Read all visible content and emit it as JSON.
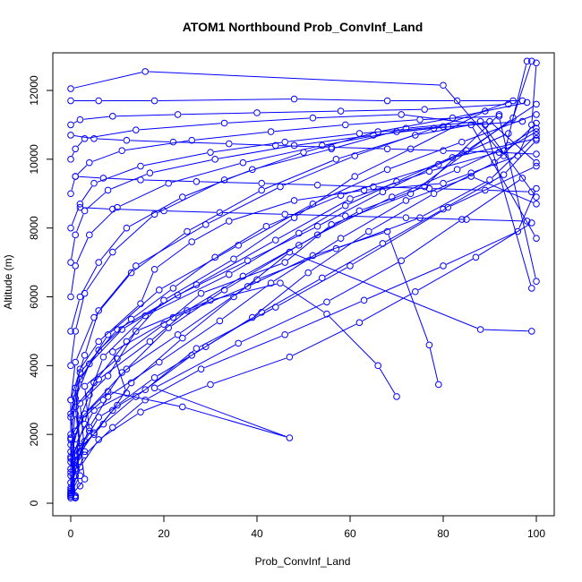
{
  "chart_data": {
    "type": "line",
    "title": "ATOM1 Northbound Prob_ConvInf_Land",
    "xlabel": "Prob_ConvInf_Land",
    "ylabel": "Altitude (m)",
    "xlim": [
      0,
      100
    ],
    "ylim": [
      0,
      12500
    ],
    "x_ticks": [
      0,
      20,
      40,
      60,
      80,
      100
    ],
    "y_ticks": [
      0,
      2000,
      4000,
      6000,
      8000,
      10000,
      12000
    ],
    "grid": false,
    "legend": "none",
    "series_color": "#0000ff",
    "marker": "open-circle",
    "series": [
      {
        "x": [
          0,
          1,
          0,
          2,
          6,
          15,
          18,
          26,
          34,
          48,
          63,
          80,
          86,
          96,
          99,
          100
        ],
        "y": [
          200,
          1200,
          2600,
          3900,
          4700,
          5800,
          6800,
          7600,
          8200,
          8800,
          9100,
          9300,
          9600,
          10100,
          11000,
          12800
        ]
      },
      {
        "x": [
          0,
          2,
          1,
          5,
          12,
          9,
          22,
          38,
          52,
          68,
          77,
          79
        ],
        "y": [
          300,
          800,
          1700,
          2700,
          3200,
          4400,
          5400,
          6300,
          7200,
          7900,
          4600,
          3450
        ]
      },
      {
        "x": [
          1,
          0,
          3,
          2,
          8,
          14,
          30,
          45,
          55,
          66,
          70
        ],
        "y": [
          150,
          900,
          1500,
          2900,
          3700,
          5000,
          5900,
          6400,
          5500,
          4000,
          3100
        ]
      },
      {
        "x": [
          0,
          1,
          4,
          3,
          10,
          20,
          28,
          46,
          56,
          73,
          95,
          99
        ],
        "y": [
          400,
          1400,
          2100,
          3400,
          4200,
          5200,
          6100,
          7000,
          8100,
          9000,
          11200,
          12850
        ]
      },
      {
        "x": [
          0,
          0,
          2,
          7,
          11,
          23,
          40,
          57,
          75,
          90,
          100
        ],
        "y": [
          200,
          1900,
          2400,
          3000,
          3800,
          4900,
          6500,
          7400,
          8300,
          9400,
          10700
        ]
      },
      {
        "x": [
          0,
          1,
          3,
          6,
          16,
          27,
          44,
          60,
          81,
          100
        ],
        "y": [
          600,
          1000,
          1800,
          2500,
          3300,
          4500,
          5700,
          6900,
          8600,
          9800
        ]
      },
      {
        "x": [
          2,
          0,
          5,
          9,
          13,
          24,
          35,
          47,
          88,
          99
        ],
        "y": [
          500,
          1300,
          2000,
          2700,
          3500,
          4800,
          6000,
          7300,
          5050,
          5000
        ]
      },
      {
        "x": [
          0,
          1,
          4,
          8,
          19,
          32,
          43,
          58,
          72,
          86,
          100
        ],
        "y": [
          250,
          1100,
          2200,
          3100,
          4100,
          5300,
          6400,
          7700,
          8800,
          9500,
          8700
        ]
      },
      {
        "x": [
          0,
          2,
          1,
          6,
          17,
          25,
          37,
          53,
          69,
          83,
          94,
          100
        ],
        "y": [
          350,
          1500,
          2800,
          3600,
          4700,
          5600,
          6600,
          7800,
          8900,
          9700,
          10400,
          10900
        ]
      },
      {
        "x": [
          1,
          0,
          3,
          12,
          21,
          33,
          49,
          62,
          76,
          92
        ],
        "y": [
          180,
          1700,
          2600,
          3900,
          5100,
          6200,
          7500,
          8500,
          9200,
          11300
        ]
      },
      {
        "x": [
          0,
          3,
          2,
          7,
          14,
          26,
          39,
          51,
          64,
          78,
          91,
          100
        ],
        "y": [
          200,
          700,
          1600,
          2300,
          3100,
          4300,
          5400,
          6700,
          7900,
          9000,
          9900,
          11050
        ]
      },
      {
        "x": [
          0,
          1,
          5,
          10,
          18,
          29,
          41,
          54,
          67,
          80,
          93,
          100
        ],
        "y": [
          450,
          1250,
          2050,
          2850,
          3650,
          4550,
          5550,
          6550,
          7550,
          8550,
          9550,
          10550
        ]
      },
      {
        "x": [
          0,
          2,
          6,
          15,
          30,
          47,
          62,
          74,
          87,
          99
        ],
        "y": [
          300,
          1050,
          1850,
          2650,
          3450,
          4250,
          5250,
          6150,
          7150,
          8150
        ]
      },
      {
        "x": [
          0,
          1,
          3,
          9,
          16,
          28,
          46,
          63,
          80,
          96,
          100
        ],
        "y": [
          150,
          800,
          1400,
          2200,
          3000,
          3900,
          4900,
          5900,
          6900,
          7900,
          9150
        ]
      },
      {
        "x": [
          1,
          0,
          2,
          8,
          24,
          47,
          18,
          36,
          55,
          71,
          84,
          97
        ],
        "y": [
          220,
          1350,
          2450,
          3250,
          2800,
          1900,
          3350,
          4650,
          5850,
          7050,
          8250,
          9450
        ]
      },
      {
        "x": [
          0,
          0,
          1,
          4,
          11,
          23,
          38,
          53,
          67,
          82,
          100
        ],
        "y": [
          260,
          1850,
          3050,
          4050,
          5050,
          6050,
          7050,
          8050,
          9050,
          10050,
          10600
        ]
      },
      {
        "x": [
          0,
          2,
          1,
          6,
          13,
          22,
          31,
          42,
          58,
          79,
          94
        ],
        "y": [
          800,
          1650,
          3350,
          4450,
          5350,
          6250,
          7150,
          8050,
          8950,
          9850,
          10750
        ]
      },
      {
        "x": [
          0,
          1,
          4,
          7,
          16,
          34,
          49,
          59,
          70,
          85,
          100
        ],
        "y": [
          1000,
          2100,
          3150,
          4250,
          5450,
          6650,
          7850,
          8650,
          9350,
          10250,
          11600
        ]
      },
      {
        "x": [
          0,
          3,
          5,
          12,
          20,
          35,
          48,
          61,
          73,
          89
        ],
        "y": [
          1200,
          2300,
          3500,
          4700,
          5900,
          7100,
          8300,
          9500,
          10300,
          11400
        ]
      },
      {
        "x": [
          0,
          1,
          2,
          10,
          27,
          44,
          60,
          77,
          93,
          100
        ],
        "y": [
          1500,
          2600,
          3800,
          5050,
          6350,
          7650,
          8850,
          9650,
          10250,
          10800
        ]
      },
      {
        "x": [
          0,
          0,
          3,
          6,
          14,
          29,
          45,
          61,
          78,
          95
        ],
        "y": [
          2000,
          3000,
          4300,
          5600,
          6900,
          8100,
          9200,
          10100,
          10900,
          11700
        ]
      },
      {
        "x": [
          0,
          2,
          8,
          19,
          36,
          52,
          68,
          84,
          100
        ],
        "y": [
          2500,
          3600,
          4900,
          6200,
          7500,
          8700,
          9700,
          10500,
          11300
        ]
      },
      {
        "x": [
          0,
          1,
          5,
          13,
          25,
          41,
          57,
          74,
          90,
          100
        ],
        "y": [
          3000,
          4100,
          5400,
          6700,
          7900,
          9100,
          10000,
          10700,
          11100,
          9900
        ]
      },
      {
        "x": [
          0,
          1,
          3,
          9,
          18,
          33,
          50,
          66,
          82,
          98
        ],
        "y": [
          4000,
          5000,
          6100,
          7300,
          8400,
          9400,
          10200,
          10800,
          11200,
          11650
        ]
      },
      {
        "x": [
          0,
          2,
          6,
          12,
          24,
          39,
          56,
          72,
          88,
          100
        ],
        "y": [
          5000,
          6000,
          7000,
          8000,
          8900,
          9700,
          10300,
          10900,
          11100,
          8900
        ]
      },
      {
        "x": [
          0,
          1,
          4,
          10,
          21,
          37,
          54,
          70,
          86,
          100
        ],
        "y": [
          6000,
          6900,
          7800,
          8600,
          9300,
          9900,
          10400,
          10800,
          11000,
          7700
        ]
      },
      {
        "x": [
          0,
          1,
          3,
          8,
          17,
          31,
          48,
          65,
          81,
          97
        ],
        "y": [
          7000,
          7800,
          8500,
          9100,
          9600,
          10000,
          10400,
          10700,
          10950,
          11100
        ]
      },
      {
        "x": [
          0,
          2,
          5,
          15,
          30,
          46,
          62,
          80
        ],
        "y": [
          8000,
          8700,
          9300,
          9800,
          10200,
          10500,
          10750,
          10950
        ]
      },
      {
        "x": [
          0,
          1,
          4,
          11,
          26,
          43,
          59,
          75,
          92,
          100
        ],
        "y": [
          9000,
          9500,
          9900,
          10250,
          10550,
          10800,
          11000,
          11150,
          11250,
          6450
        ]
      },
      {
        "x": [
          0,
          1,
          3,
          14,
          33,
          52,
          71,
          89,
          99
        ],
        "y": [
          10000,
          10300,
          10600,
          10850,
          11050,
          11200,
          11300,
          11000,
          6250
        ]
      },
      {
        "x": [
          0,
          2,
          9,
          23,
          40,
          58,
          76,
          94
        ],
        "y": [
          11000,
          11150,
          11250,
          11300,
          11350,
          11400,
          11450,
          11600
        ]
      },
      {
        "x": [
          0,
          16,
          80,
          93,
          98
        ],
        "y": [
          12050,
          12550,
          12150,
          10100,
          12850
        ]
      },
      {
        "x": [
          0,
          6,
          18,
          48,
          68,
          83,
          97
        ],
        "y": [
          11700,
          11700,
          11700,
          11750,
          11700,
          11700,
          11700
        ]
      },
      {
        "x": [
          0,
          5,
          12,
          22,
          34,
          44,
          56,
          68,
          80,
          92,
          100
        ],
        "y": [
          10700,
          10600,
          10550,
          10500,
          10450,
          10400,
          10350,
          10300,
          10250,
          10200,
          10150
        ]
      },
      {
        "x": [
          1,
          7,
          15,
          27,
          41,
          53,
          65,
          77,
          89,
          99
        ],
        "y": [
          9500,
          9450,
          9400,
          9350,
          9300,
          9250,
          9200,
          9150,
          9100,
          9050
        ]
      },
      {
        "x": [
          2,
          9,
          20,
          32,
          46,
          59,
          72,
          85,
          98
        ],
        "y": [
          8600,
          8550,
          8500,
          8450,
          8400,
          8350,
          8300,
          8250,
          8200
        ]
      }
    ]
  }
}
